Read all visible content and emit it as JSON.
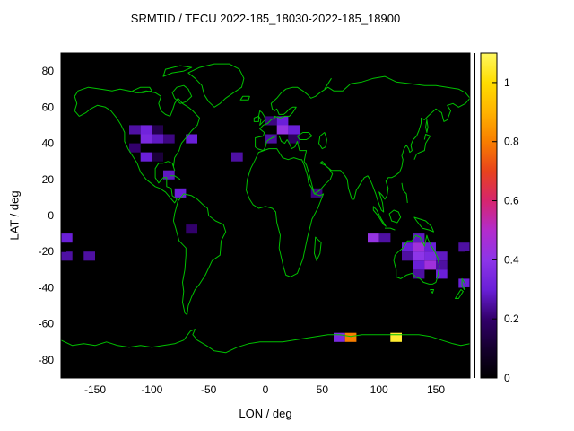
{
  "chart_data": {
    "type": "heatmap",
    "title": "SRMTID / TECU 2022-185_18030-2022-185_18900",
    "xlabel": "LON / deg",
    "ylabel": "LAT / deg",
    "xlim": [
      -180,
      180
    ],
    "ylim": [
      -90,
      90
    ],
    "x_ticks": [
      -150,
      -100,
      -50,
      0,
      50,
      100,
      150
    ],
    "y_ticks": [
      -80,
      -60,
      -40,
      -20,
      0,
      20,
      40,
      60,
      80
    ],
    "grid": false,
    "background": "#000000",
    "coastline_color": "#00c000",
    "bin_size": {
      "lon": 10,
      "lat": 5
    },
    "colorbar": {
      "min": 0,
      "max": 1.1,
      "position": "right",
      "ticks": [
        0,
        0.2,
        0.4,
        0.6,
        0.8,
        1
      ],
      "tick_labels": [
        "0",
        "0.2",
        "0.4",
        "0.6",
        "0.8",
        "1"
      ],
      "palette_stops": [
        [
          0.0,
          "#000000"
        ],
        [
          0.1,
          "#15002e"
        ],
        [
          0.2,
          "#32006b"
        ],
        [
          0.3,
          "#6a1fd8"
        ],
        [
          0.4,
          "#8d35e8"
        ],
        [
          0.5,
          "#b32ccc"
        ],
        [
          0.6,
          "#d6256e"
        ],
        [
          0.7,
          "#e8431c"
        ],
        [
          0.8,
          "#f87e00"
        ],
        [
          0.9,
          "#ffb300"
        ],
        [
          1.0,
          "#ffdd00"
        ],
        [
          1.1,
          "#fff860"
        ]
      ]
    },
    "cells": [
      {
        "lon": -120,
        "lat": 45,
        "value": 0.25
      },
      {
        "lon": -110,
        "lat": 45,
        "value": 0.32
      },
      {
        "lon": -100,
        "lat": 45,
        "value": 0.15
      },
      {
        "lon": -110,
        "lat": 40,
        "value": 0.35
      },
      {
        "lon": -100,
        "lat": 40,
        "value": 0.28
      },
      {
        "lon": -90,
        "lat": 40,
        "value": 0.22
      },
      {
        "lon": -70,
        "lat": 40,
        "value": 0.3
      },
      {
        "lon": -120,
        "lat": 35,
        "value": 0.2
      },
      {
        "lon": -110,
        "lat": 30,
        "value": 0.3
      },
      {
        "lon": -100,
        "lat": 30,
        "value": 0.12
      },
      {
        "lon": -90,
        "lat": 20,
        "value": 0.28
      },
      {
        "lon": -80,
        "lat": 10,
        "value": 0.3
      },
      {
        "lon": -30,
        "lat": 30,
        "value": 0.25
      },
      {
        "lon": 0,
        "lat": 50,
        "value": 0.22
      },
      {
        "lon": 10,
        "lat": 50,
        "value": 0.3
      },
      {
        "lon": 10,
        "lat": 45,
        "value": 0.42
      },
      {
        "lon": 20,
        "lat": 45,
        "value": 0.3
      },
      {
        "lon": 0,
        "lat": 40,
        "value": 0.25
      },
      {
        "lon": 20,
        "lat": 40,
        "value": 0.18
      },
      {
        "lon": 40,
        "lat": 10,
        "value": 0.22
      },
      {
        "lon": -180,
        "lat": -15,
        "value": 0.3
      },
      {
        "lon": -180,
        "lat": -25,
        "value": 0.25
      },
      {
        "lon": -160,
        "lat": -25,
        "value": 0.25
      },
      {
        "lon": -70,
        "lat": -10,
        "value": 0.2
      },
      {
        "lon": 90,
        "lat": -15,
        "value": 0.42
      },
      {
        "lon": 100,
        "lat": -15,
        "value": 0.25
      },
      {
        "lon": 130,
        "lat": -15,
        "value": 0.28
      },
      {
        "lon": 120,
        "lat": -20,
        "value": 0.3
      },
      {
        "lon": 130,
        "lat": -20,
        "value": 0.45
      },
      {
        "lon": 140,
        "lat": -20,
        "value": 0.3
      },
      {
        "lon": 120,
        "lat": -25,
        "value": 0.25
      },
      {
        "lon": 130,
        "lat": -25,
        "value": 0.4
      },
      {
        "lon": 140,
        "lat": -25,
        "value": 0.35
      },
      {
        "lon": 150,
        "lat": -25,
        "value": 0.28
      },
      {
        "lon": 130,
        "lat": -30,
        "value": 0.3
      },
      {
        "lon": 140,
        "lat": -30,
        "value": 0.45
      },
      {
        "lon": 150,
        "lat": -30,
        "value": 0.25
      },
      {
        "lon": 130,
        "lat": -35,
        "value": 0.25
      },
      {
        "lon": 150,
        "lat": -35,
        "value": 0.3
      },
      {
        "lon": 170,
        "lat": -20,
        "value": 0.25
      },
      {
        "lon": 170,
        "lat": -40,
        "value": 0.3
      },
      {
        "lon": 60,
        "lat": -70,
        "value": 0.35
      },
      {
        "lon": 70,
        "lat": -70,
        "value": 0.8
      },
      {
        "lon": 110,
        "lat": -70,
        "value": 1.05
      }
    ]
  }
}
